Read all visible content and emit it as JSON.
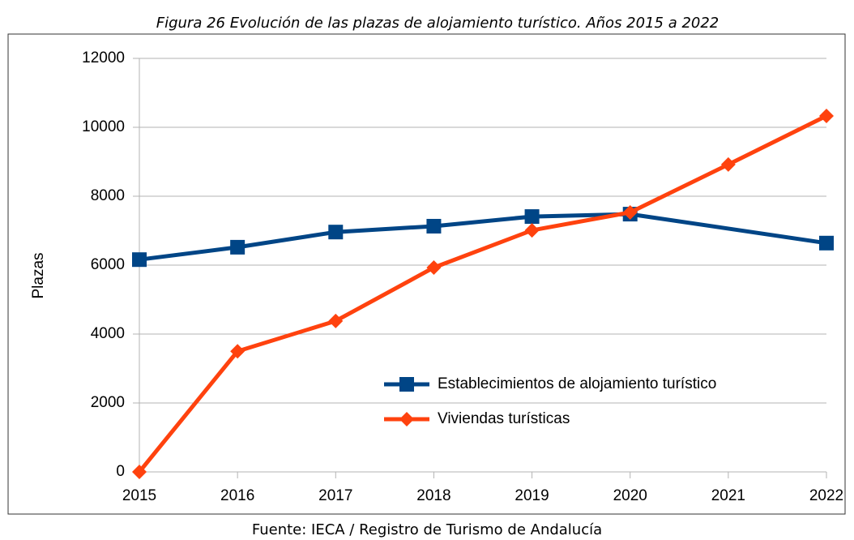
{
  "chart_data": {
    "type": "line",
    "title": "Figura 26  Evolución de las plazas de alojamiento turístico. Años 2015 a 2022",
    "source": "Fuente:  IECA / Registro de Turismo de Andalucía",
    "y_label": "Plazas",
    "xlim": [
      2015,
      2022
    ],
    "xticks": [
      2015,
      2016,
      2017,
      2018,
      2019,
      2020,
      2021,
      2022
    ],
    "ylim": [
      0,
      12000
    ],
    "yticks": [
      0,
      2000,
      4000,
      6000,
      8000,
      10000,
      12000
    ],
    "grid": true,
    "series": [
      {
        "name": "Establecimientos de alojamiento turístico",
        "color": "#004586",
        "marker": "square",
        "x": [
          2015,
          2016,
          2017,
          2018,
          2019,
          2020,
          2022
        ],
        "values": [
          6160,
          6520,
          6960,
          7130,
          7410,
          7480,
          6640
        ]
      },
      {
        "name": "Viviendas turísticas",
        "color": "#ff420e",
        "marker": "diamond",
        "x": [
          2015,
          2016,
          2017,
          2018,
          2019,
          2020,
          2021,
          2022
        ],
        "values": [
          0,
          3500,
          4380,
          5930,
          7010,
          7530,
          8920,
          10330
        ]
      }
    ]
  }
}
